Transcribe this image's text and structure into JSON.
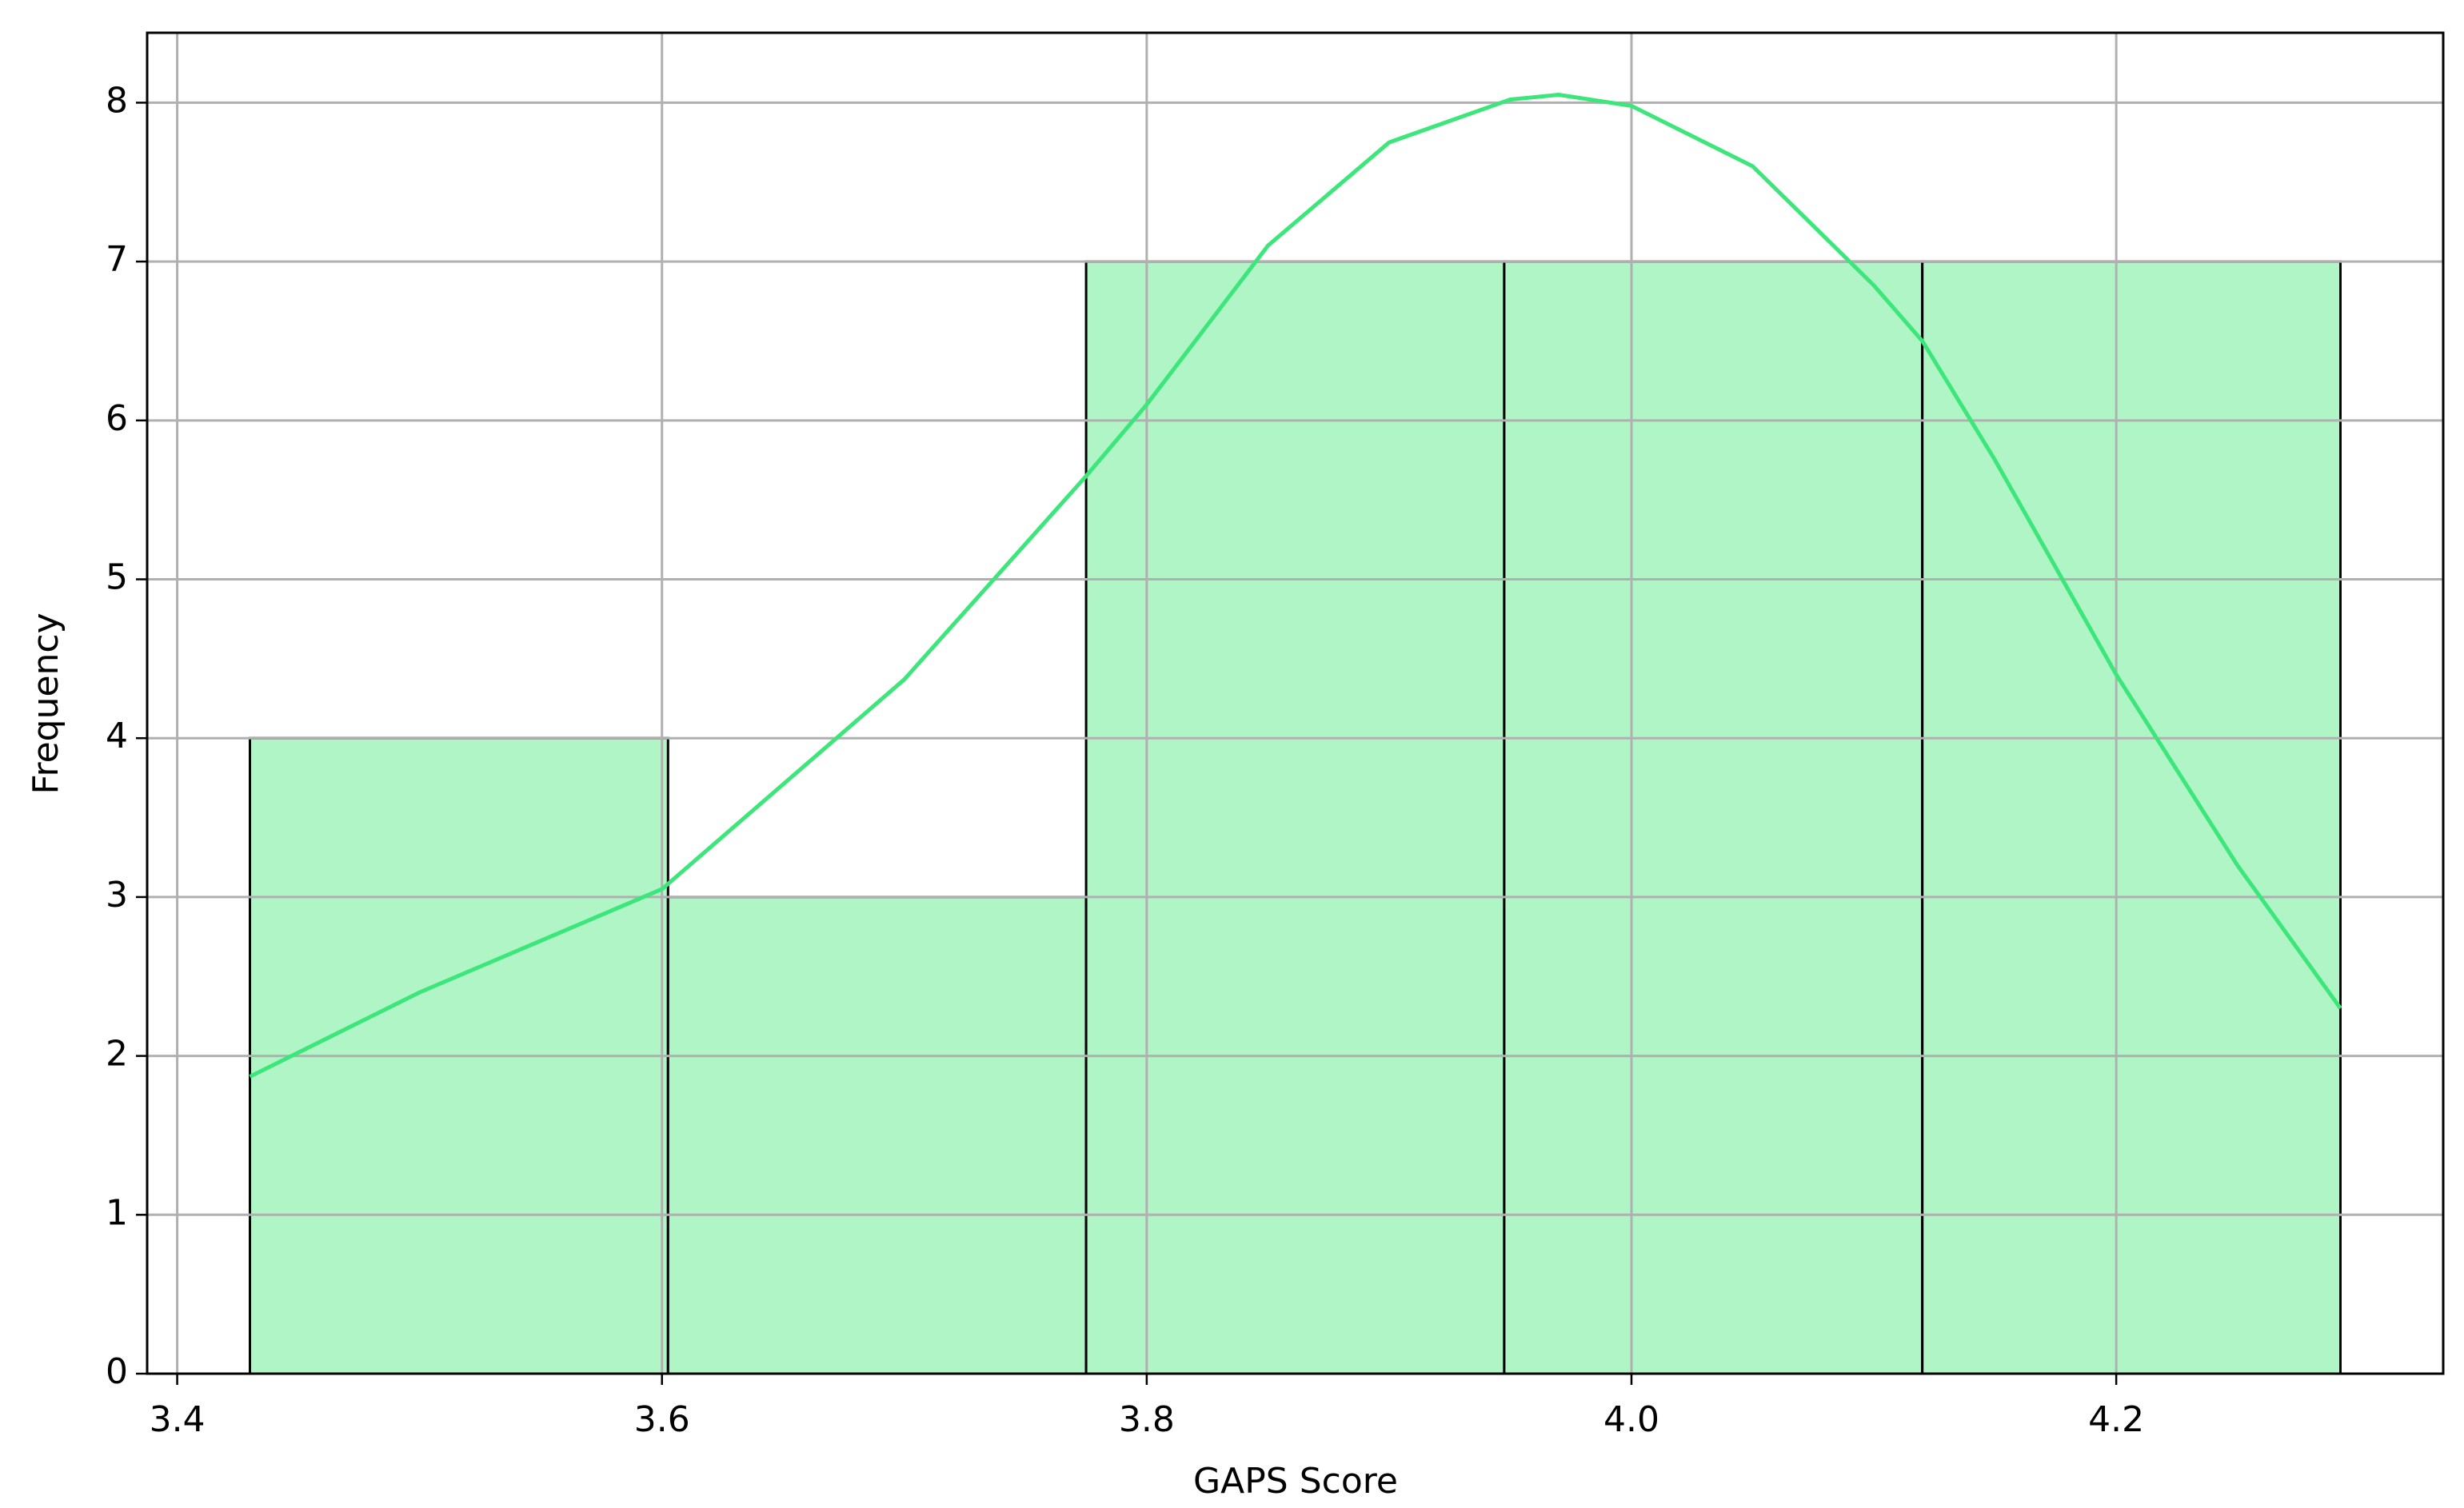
{
  "chart_data": {
    "type": "histogram",
    "xlabel": "GAPS Score",
    "ylabel": "Frequency",
    "bins": [
      3.43,
      3.6025,
      3.775,
      3.9475,
      4.12,
      4.2925
    ],
    "counts": [
      4,
      3,
      7,
      7,
      7
    ],
    "color": "#b0f5c5",
    "edgecolor": "#000000",
    "kde": {
      "color": "#3de67a",
      "x": [
        3.43,
        3.5,
        3.6,
        3.7,
        3.775,
        3.8,
        3.85,
        3.9,
        3.95,
        3.97,
        4.0,
        4.05,
        4.1,
        4.12,
        4.15,
        4.2,
        4.25,
        4.2925
      ],
      "y": [
        1.87,
        2.4,
        3.05,
        4.37,
        5.65,
        6.1,
        7.1,
        7.75,
        8.02,
        8.05,
        7.98,
        7.6,
        6.85,
        6.5,
        5.75,
        4.4,
        3.2,
        2.3
      ]
    },
    "xlim": [
      3.3876,
      4.3349
    ],
    "ylim": [
      0,
      8.44
    ],
    "xticks": [
      3.4,
      3.6,
      3.8,
      {
        "value": 4.0,
        "label": "4.0"
      },
      4.2
    ],
    "yticks": [
      0,
      1,
      2,
      3,
      4,
      5,
      6,
      7,
      8
    ],
    "grid": true
  }
}
